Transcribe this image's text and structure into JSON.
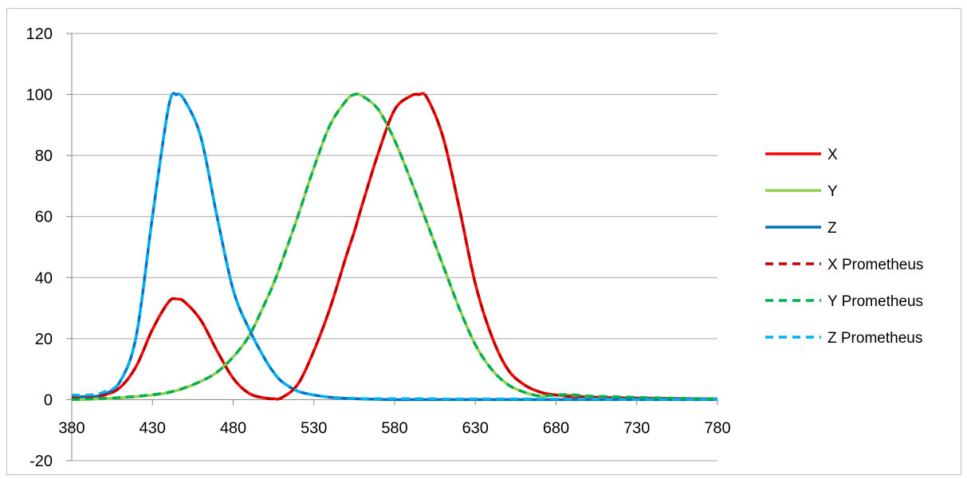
{
  "chart_data": {
    "type": "line",
    "title": "",
    "xlabel": "",
    "ylabel": "",
    "xlim": [
      380,
      780
    ],
    "ylim": [
      -20,
      120
    ],
    "x_ticks": [
      "380",
      "430",
      "480",
      "530",
      "580",
      "630",
      "680",
      "730",
      "780"
    ],
    "y_ticks": [
      "-20",
      "0",
      "20",
      "40",
      "60",
      "80",
      "100",
      "120"
    ],
    "grid": "horizontal",
    "legend_position": "right",
    "x": [
      380,
      390,
      400,
      410,
      420,
      430,
      440,
      445,
      450,
      460,
      470,
      480,
      490,
      500,
      505,
      510,
      520,
      530,
      540,
      550,
      555,
      560,
      570,
      580,
      590,
      595,
      600,
      610,
      620,
      630,
      640,
      650,
      660,
      670,
      680,
      690,
      700,
      720,
      740,
      760,
      780
    ],
    "series": [
      {
        "name": "X",
        "color": "#ff0000",
        "dash": "solid",
        "values": [
          0.5,
          0.8,
          1.5,
          4,
          11,
          23,
          32,
          33,
          32,
          26,
          16,
          7,
          2,
          0.5,
          0.3,
          0.6,
          5,
          16,
          30,
          47,
          55,
          64,
          81,
          95,
          99.5,
          100,
          99,
          86,
          63,
          38,
          21,
          10,
          5,
          2.5,
          1.5,
          1,
          0.8,
          0.5,
          0.4,
          0.3,
          0.2
        ]
      },
      {
        "name": "Y",
        "color": "#92d050",
        "dash": "solid",
        "values": [
          0,
          0.1,
          0.3,
          0.6,
          1,
          1.5,
          2.3,
          3,
          3.8,
          6,
          9,
          14,
          21,
          32,
          38,
          45,
          60,
          76,
          90,
          98,
          100,
          99.5,
          95,
          85,
          72,
          65,
          58,
          44,
          30,
          18,
          10,
          5,
          2.5,
          1.2,
          1.5,
          1.5,
          1,
          0.7,
          0.5,
          0.3,
          0.2
        ]
      },
      {
        "name": "Z",
        "color": "#0070c0",
        "dash": "solid",
        "values": [
          1,
          1,
          1.8,
          6,
          21,
          60,
          96,
          100,
          98,
          86,
          60,
          36,
          23,
          13,
          9,
          6,
          2.8,
          1.5,
          0.8,
          0.4,
          0.3,
          0.2,
          0.1,
          0,
          0,
          0,
          0,
          0,
          0,
          0,
          0,
          0,
          0,
          0,
          0,
          0,
          0,
          0,
          0,
          0,
          0
        ]
      },
      {
        "name": "X Prometheus",
        "color": "#c00000",
        "dash": "dashed",
        "values": [
          0.5,
          0.8,
          1.5,
          4,
          11,
          23,
          32,
          33,
          32,
          26,
          16,
          7,
          2,
          0.5,
          0.3,
          0.6,
          5,
          16,
          30,
          47,
          55,
          64,
          81,
          95,
          99.5,
          100,
          99,
          86,
          63,
          38,
          21,
          10,
          5,
          2.5,
          1.5,
          1,
          0.8,
          0.5,
          0.4,
          0.3,
          0.2
        ]
      },
      {
        "name": "Y Prometheus",
        "color": "#00b050",
        "dash": "dashed",
        "values": [
          0,
          0.2,
          0.4,
          0.7,
          1.1,
          1.6,
          2.4,
          3.1,
          3.9,
          6,
          9,
          14,
          21,
          32,
          38,
          45,
          60,
          76,
          90,
          98,
          100,
          99.5,
          95,
          85,
          72,
          65,
          58,
          44,
          30,
          18,
          10,
          5,
          2.5,
          1.2,
          1.6,
          1.6,
          1.2,
          0.9,
          0.6,
          0.4,
          0.3
        ]
      },
      {
        "name": "Z Prometheus",
        "color": "#00b0f0",
        "dash": "dashed",
        "values": [
          1.5,
          1.5,
          2.5,
          6,
          21,
          60,
          96,
          100,
          98,
          86,
          60,
          36,
          23,
          13,
          9,
          6,
          2.8,
          1.5,
          0.8,
          0.5,
          0.4,
          0.3,
          0.3,
          0.3,
          0.3,
          0.3,
          0.3,
          0.2,
          0.2,
          0.2,
          0.2,
          0.2,
          0.2,
          0.2,
          0.2,
          0.2,
          0.2,
          0.1,
          0.1,
          0.1,
          0.1
        ]
      }
    ]
  }
}
